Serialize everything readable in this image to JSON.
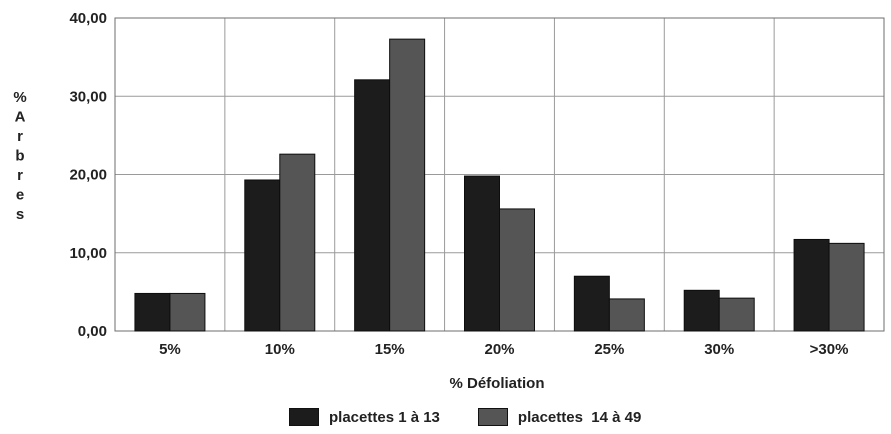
{
  "chart_data": {
    "type": "bar",
    "title": "",
    "xlabel": "% Défoliation",
    "ylabel": "% Arbres",
    "categories": [
      "5%",
      "10%",
      "15%",
      "20%",
      "25%",
      "30%",
      ">30%"
    ],
    "series": [
      {
        "name": "placettes 1 à 13",
        "color": "#1c1c1c",
        "values": [
          4.8,
          19.3,
          32.1,
          19.8,
          7.0,
          5.2,
          11.7
        ]
      },
      {
        "name": "placettes  14 à 49",
        "color": "#555555",
        "values": [
          4.8,
          22.6,
          37.3,
          15.6,
          4.1,
          4.2,
          11.2
        ]
      }
    ],
    "ylim": [
      0,
      40
    ],
    "yticks": [
      "0,00",
      "10,00",
      "20,00",
      "30,00",
      "40,00"
    ],
    "ytick_values": [
      0,
      10,
      20,
      30,
      40
    ],
    "grid": true,
    "legend_position": "bottom"
  }
}
